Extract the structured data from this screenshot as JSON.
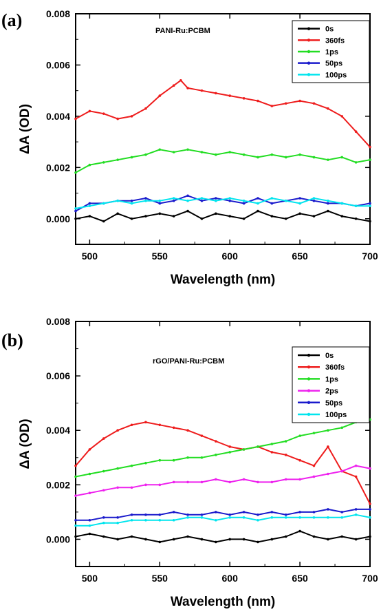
{
  "chart_data": [
    {
      "type": "line",
      "panel_label": "(a)",
      "title": "PANI-Ru:PCBM",
      "xlabel": "Wavelength (nm)",
      "ylabel": "ΔA (OD)",
      "xlim": [
        490,
        700
      ],
      "ylim": [
        -0.001,
        0.008
      ],
      "xticks": [
        500,
        550,
        600,
        650,
        700
      ],
      "yticks": [
        "0.000",
        "0.002",
        "0.004",
        "0.006",
        "0.008"
      ],
      "legend": "top-right",
      "series": [
        {
          "name": "0s",
          "color": "#000000",
          "x": [
            490,
            500,
            510,
            520,
            530,
            540,
            550,
            560,
            570,
            580,
            590,
            600,
            610,
            620,
            630,
            640,
            650,
            660,
            670,
            680,
            690,
            700
          ],
          "y": [
            0.0,
            0.0001,
            -0.0001,
            0.0002,
            0.0,
            0.0001,
            0.0002,
            0.0001,
            0.0003,
            0.0,
            0.0002,
            0.0001,
            0.0,
            0.0003,
            0.0001,
            0.0,
            0.0002,
            0.0001,
            0.0003,
            0.0001,
            0.0,
            -0.0001
          ]
        },
        {
          "name": "360fs",
          "color": "#ee1c1c",
          "x": [
            490,
            500,
            510,
            520,
            530,
            540,
            550,
            560,
            565,
            570,
            580,
            590,
            600,
            610,
            620,
            630,
            640,
            650,
            660,
            670,
            680,
            690,
            700
          ],
          "y": [
            0.0039,
            0.0042,
            0.0041,
            0.0039,
            0.004,
            0.0043,
            0.0048,
            0.0052,
            0.0054,
            0.0051,
            0.005,
            0.0049,
            0.0048,
            0.0047,
            0.0046,
            0.0044,
            0.0045,
            0.0046,
            0.0045,
            0.0043,
            0.004,
            0.0034,
            0.0028
          ]
        },
        {
          "name": "1ps",
          "color": "#22dd22",
          "x": [
            490,
            500,
            510,
            520,
            530,
            540,
            550,
            560,
            570,
            580,
            590,
            600,
            610,
            620,
            630,
            640,
            650,
            660,
            670,
            680,
            690,
            700
          ],
          "y": [
            0.0018,
            0.0021,
            0.0022,
            0.0023,
            0.0024,
            0.0025,
            0.0027,
            0.0026,
            0.0027,
            0.0026,
            0.0025,
            0.0026,
            0.0025,
            0.0024,
            0.0025,
            0.0024,
            0.0025,
            0.0024,
            0.0023,
            0.0024,
            0.0022,
            0.0023
          ]
        },
        {
          "name": "50ps",
          "color": "#1a1acc",
          "x": [
            490,
            500,
            510,
            520,
            530,
            540,
            550,
            560,
            570,
            580,
            590,
            600,
            610,
            620,
            630,
            640,
            650,
            660,
            670,
            680,
            690,
            700
          ],
          "y": [
            0.0003,
            0.0006,
            0.0006,
            0.0007,
            0.0007,
            0.0008,
            0.0006,
            0.0007,
            0.0009,
            0.0007,
            0.0008,
            0.0007,
            0.0006,
            0.0008,
            0.0006,
            0.0007,
            0.0008,
            0.0007,
            0.0006,
            0.0006,
            0.0005,
            0.0006
          ]
        },
        {
          "name": "100ps",
          "color": "#00e5ee",
          "x": [
            490,
            500,
            510,
            520,
            530,
            540,
            550,
            560,
            570,
            580,
            590,
            600,
            610,
            620,
            630,
            640,
            650,
            660,
            670,
            680,
            690,
            700
          ],
          "y": [
            0.0004,
            0.0005,
            0.0006,
            0.0007,
            0.0006,
            0.0007,
            0.0007,
            0.0008,
            0.0007,
            0.0008,
            0.0007,
            0.0008,
            0.0007,
            0.0006,
            0.0008,
            0.0007,
            0.0006,
            0.0008,
            0.0007,
            0.0006,
            0.0005,
            0.0005
          ]
        }
      ]
    },
    {
      "type": "line",
      "panel_label": "(b)",
      "title": "rGO/PANI-Ru:PCBM",
      "xlabel": "Wavelength (nm)",
      "ylabel": "ΔA (OD)",
      "xlim": [
        490,
        700
      ],
      "ylim": [
        -0.001,
        0.008
      ],
      "xticks": [
        500,
        550,
        600,
        650,
        700
      ],
      "yticks": [
        "0.000",
        "0.002",
        "0.004",
        "0.006",
        "0.008"
      ],
      "legend": "top-right",
      "series": [
        {
          "name": "0s",
          "color": "#000000",
          "x": [
            490,
            500,
            510,
            520,
            530,
            540,
            550,
            560,
            570,
            580,
            590,
            600,
            610,
            620,
            630,
            640,
            650,
            660,
            670,
            680,
            690,
            700
          ],
          "y": [
            0.0001,
            0.0002,
            0.0001,
            0.0,
            0.0001,
            0.0,
            -0.0001,
            0.0,
            0.0001,
            0.0,
            -0.0001,
            0.0,
            0.0,
            -0.0001,
            0.0,
            0.0001,
            0.0003,
            0.0001,
            0.0,
            0.0001,
            0.0,
            0.0001
          ]
        },
        {
          "name": "360fs",
          "color": "#ee1c1c",
          "x": [
            490,
            500,
            510,
            520,
            530,
            540,
            550,
            560,
            570,
            580,
            590,
            600,
            610,
            620,
            630,
            640,
            650,
            660,
            670,
            680,
            690,
            700
          ],
          "y": [
            0.0027,
            0.0033,
            0.0037,
            0.004,
            0.0042,
            0.0043,
            0.0042,
            0.0041,
            0.004,
            0.0038,
            0.0036,
            0.0034,
            0.0033,
            0.0034,
            0.0032,
            0.0031,
            0.0029,
            0.0027,
            0.0034,
            0.0025,
            0.0023,
            0.0013
          ]
        },
        {
          "name": "1ps",
          "color": "#22dd22",
          "x": [
            490,
            500,
            510,
            520,
            530,
            540,
            550,
            560,
            570,
            580,
            590,
            600,
            610,
            620,
            630,
            640,
            650,
            660,
            670,
            680,
            690,
            700
          ],
          "y": [
            0.0023,
            0.0024,
            0.0025,
            0.0026,
            0.0027,
            0.0028,
            0.0029,
            0.0029,
            0.003,
            0.003,
            0.0031,
            0.0032,
            0.0033,
            0.0034,
            0.0035,
            0.0036,
            0.0038,
            0.0039,
            0.004,
            0.0041,
            0.0043,
            0.0044
          ]
        },
        {
          "name": "2ps",
          "color": "#ee22ee",
          "x": [
            490,
            500,
            510,
            520,
            530,
            540,
            550,
            560,
            570,
            580,
            590,
            600,
            610,
            620,
            630,
            640,
            650,
            660,
            670,
            680,
            690,
            700
          ],
          "y": [
            0.0016,
            0.0017,
            0.0018,
            0.0019,
            0.0019,
            0.002,
            0.002,
            0.0021,
            0.0021,
            0.0021,
            0.0022,
            0.0021,
            0.0022,
            0.0021,
            0.0021,
            0.0022,
            0.0022,
            0.0023,
            0.0024,
            0.0025,
            0.0027,
            0.0026
          ]
        },
        {
          "name": "50ps",
          "color": "#1a1acc",
          "x": [
            490,
            500,
            510,
            520,
            530,
            540,
            550,
            560,
            570,
            580,
            590,
            600,
            610,
            620,
            630,
            640,
            650,
            660,
            670,
            680,
            690,
            700
          ],
          "y": [
            0.0007,
            0.0007,
            0.0008,
            0.0008,
            0.0009,
            0.0009,
            0.0009,
            0.001,
            0.0009,
            0.0009,
            0.001,
            0.0009,
            0.001,
            0.0009,
            0.001,
            0.0009,
            0.001,
            0.001,
            0.0011,
            0.001,
            0.0011,
            0.0011
          ]
        },
        {
          "name": "100ps",
          "color": "#00e5ee",
          "x": [
            490,
            500,
            510,
            520,
            530,
            540,
            550,
            560,
            570,
            580,
            590,
            600,
            610,
            620,
            630,
            640,
            650,
            660,
            670,
            680,
            690,
            700
          ],
          "y": [
            0.0005,
            0.0005,
            0.0006,
            0.0006,
            0.0007,
            0.0007,
            0.0007,
            0.0007,
            0.0008,
            0.0008,
            0.0007,
            0.0008,
            0.0008,
            0.0007,
            0.0008,
            0.0008,
            0.0008,
            0.0008,
            0.0008,
            0.0008,
            0.0009,
            0.0008
          ]
        }
      ]
    }
  ]
}
